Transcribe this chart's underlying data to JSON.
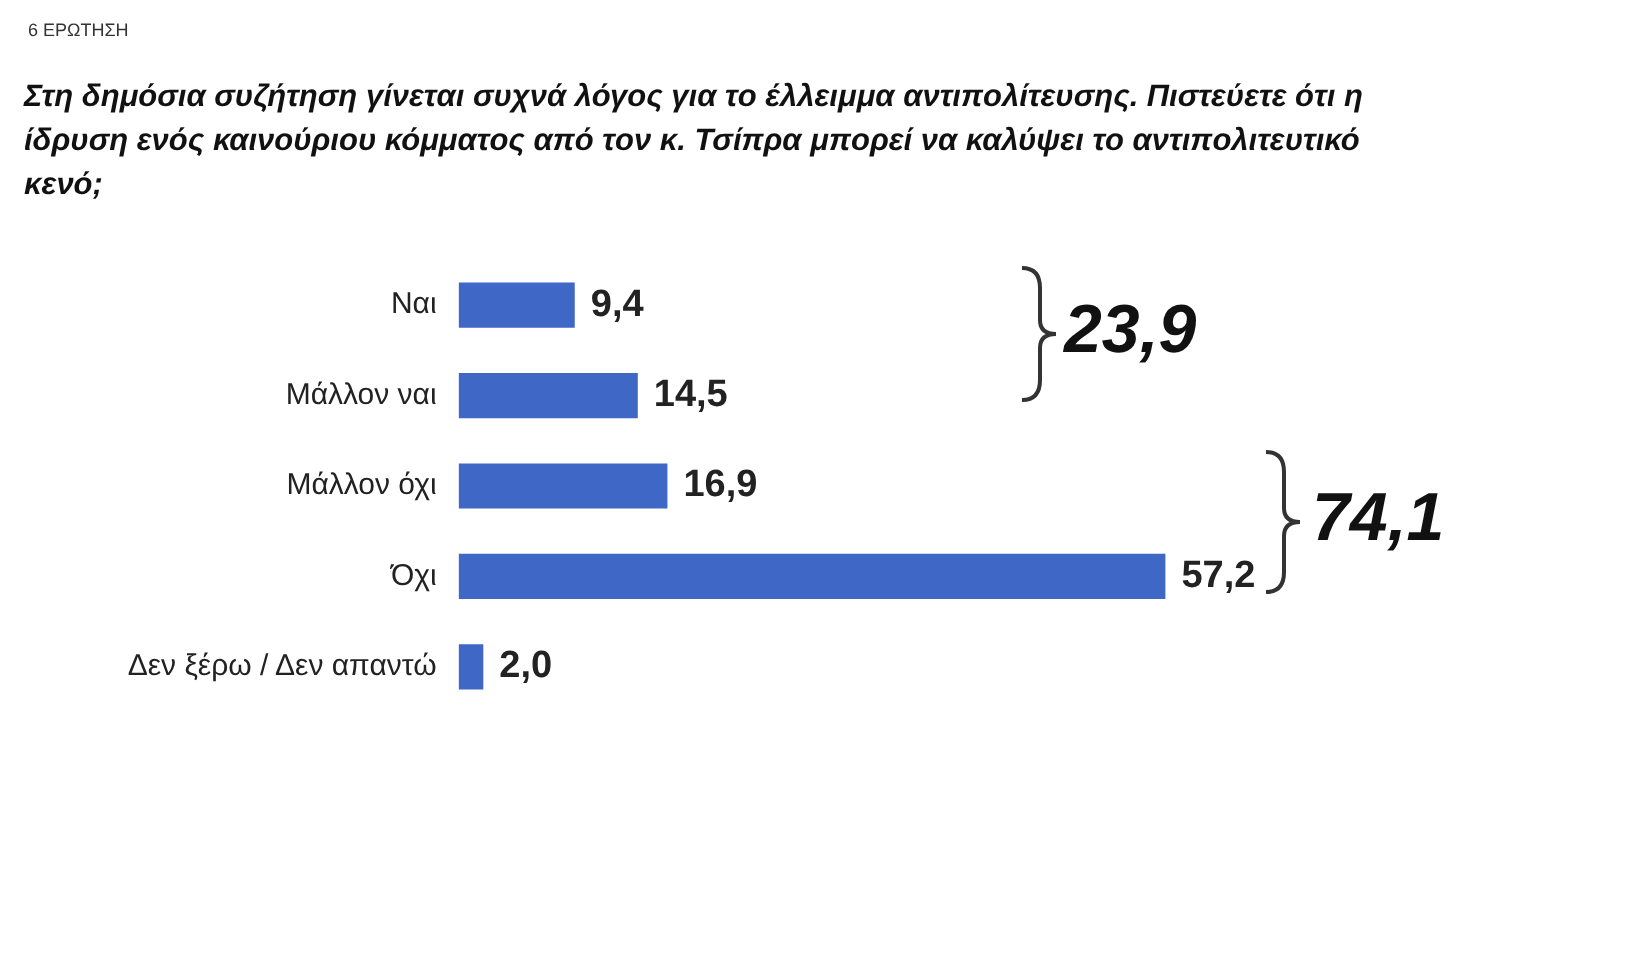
{
  "chart_data": {
    "type": "bar",
    "orientation": "horizontal",
    "subtitle": "6 ΕΡΩΤΗΣΗ",
    "title": "Στη δημόσια συζήτηση γίνεται συχνά λόγος για το έλλειμμα αντιπολίτευσης. Πιστεύετε ότι η ίδρυση ενός καινούριου κόμματος από τον κ. Τσίπρα μπορεί να καλύψει το αντιπολιτευτικό κενό;",
    "categories": [
      "Ναι",
      "Μάλλον ναι",
      "Μάλλον όχι",
      "Όχι",
      "Δεν ξέρω / Δεν απαντώ"
    ],
    "values": [
      9.4,
      14.5,
      16.9,
      57.2,
      2.0
    ],
    "value_labels": [
      "9,4",
      "14,5",
      "16,9",
      "57,2",
      "2,0"
    ],
    "color": "#3f67c6",
    "tick_labels": "y",
    "legend": false,
    "annotations": [
      "23,9",
      "74,1"
    ]
  }
}
